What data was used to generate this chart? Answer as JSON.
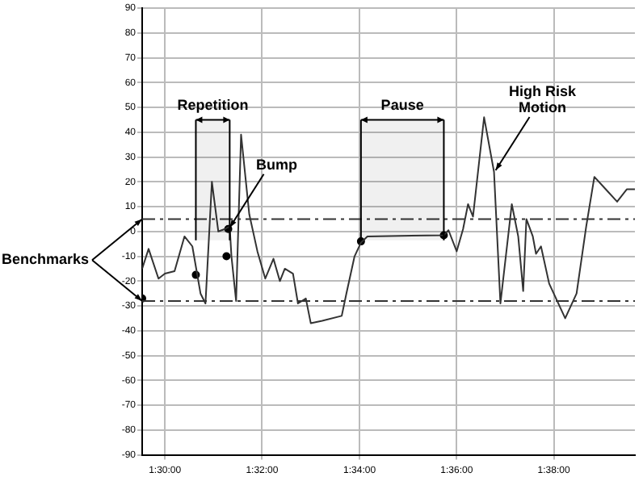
{
  "chart_data": {
    "type": "line",
    "x": [
      1.4922,
      1.4944,
      1.4978,
      1.5,
      1.5033,
      1.5067,
      1.5094,
      1.5122,
      1.5139,
      1.5161,
      1.5183,
      1.5206,
      1.5222,
      1.5228,
      1.5244,
      1.5261,
      1.5289,
      1.5317,
      1.5344,
      1.5372,
      1.5394,
      1.5411,
      1.5439,
      1.5456,
      1.5483,
      1.55,
      1.5539,
      1.5606,
      1.5622,
      1.565,
      1.5672,
      1.5694,
      1.5956,
      1.5972,
      1.6,
      1.6022,
      1.6039,
      1.6056,
      1.6094,
      1.6128,
      1.615,
      1.6189,
      1.6211,
      1.6228,
      1.6239,
      1.6261,
      1.6272,
      1.6289,
      1.6317,
      1.6372,
      1.6411,
      1.6444,
      1.6472,
      1.6511,
      1.655,
      1.6583,
      1.6611
    ],
    "series": [
      {
        "color": "#333333",
        "values": [
          -15,
          -7,
          -19,
          -17,
          -16,
          -2,
          -6,
          -25,
          -29,
          20,
          0,
          1,
          2,
          -10,
          -28,
          39,
          7,
          -8,
          -19,
          -11,
          -20,
          -15,
          -17,
          -29,
          -27,
          -37,
          -36,
          -34,
          -25,
          -10,
          -4.5,
          -2,
          -1.5,
          0.5,
          -8,
          1,
          11,
          6,
          46,
          24,
          -29,
          11,
          -2,
          -24,
          5,
          -2,
          -9,
          -6,
          -21,
          -35,
          -25,
          2,
          22,
          17,
          12,
          17,
          17
        ]
      },
      {
        "type": "scatter",
        "marker": "circle",
        "color": "#000000",
        "x": [
          1.4922,
          1.5106,
          1.5211,
          1.5217,
          1.5672,
          1.5956
        ],
        "values": [
          -27,
          -17.5,
          -10,
          1,
          -4,
          -1.5
        ]
      }
    ],
    "xlim": [
      1.4922,
      1.6611
    ],
    "xticks": [
      {
        "value": 1.5,
        "label": "1:30:00"
      },
      {
        "value": 1.5333,
        "label": "1:32:00"
      },
      {
        "value": 1.5667,
        "label": "1:34:00"
      },
      {
        "value": 1.6,
        "label": "1:36:00"
      },
      {
        "value": 1.6333,
        "label": "1:38:00"
      }
    ],
    "ylim": [
      -90,
      90
    ],
    "yticks": [
      -90,
      -80,
      -70,
      -60,
      -50,
      -40,
      -30,
      -20,
      -10,
      0,
      10,
      20,
      30,
      40,
      50,
      60,
      70,
      80,
      90
    ],
    "grid": true,
    "legend": false,
    "line_style": "solid",
    "ref_lines": [
      {
        "axis": "y",
        "value": 5,
        "label": null,
        "line_style": "dashdot"
      },
      {
        "axis": "y",
        "value": -28,
        "label": null,
        "line_style": "dashdot"
      }
    ],
    "bands": [
      {
        "axis": "x",
        "from": 1.5106,
        "to": 1.5222,
        "label": "Repetition"
      },
      {
        "axis": "x",
        "from": 1.5672,
        "to": 1.5956,
        "label": "Pause"
      }
    ],
    "annotations": [
      {
        "text": "Benchmarks",
        "x": 1.4922,
        "y": 5
      },
      {
        "text": "Bump",
        "x": 1.5217,
        "y": 1
      },
      {
        "text": "High Risk Motion",
        "x": 1.6128,
        "y": 24
      }
    ]
  }
}
